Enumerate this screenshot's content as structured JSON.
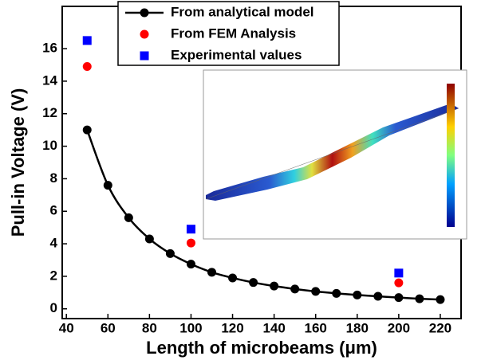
{
  "chart_data": {
    "type": "line",
    "xlabel": "Length of microbeams (μm)",
    "ylabel": "Pull-in Voltage (V)",
    "xlim": [
      38,
      230
    ],
    "ylim": [
      -0.6,
      18.6
    ],
    "xticks": [
      40,
      60,
      80,
      100,
      120,
      140,
      160,
      180,
      200,
      220
    ],
    "yticks": [
      0,
      2,
      4,
      6,
      8,
      10,
      12,
      14,
      16
    ],
    "series": [
      {
        "name": "From analytical model",
        "color": "#000000",
        "marker": "circle",
        "line": true,
        "x": [
          50,
          60,
          70,
          80,
          90,
          100,
          110,
          120,
          130,
          140,
          150,
          160,
          170,
          180,
          190,
          200,
          210,
          220
        ],
        "values": [
          11.0,
          7.6,
          5.6,
          4.3,
          3.4,
          2.75,
          2.25,
          1.9,
          1.62,
          1.4,
          1.22,
          1.07,
          0.95,
          0.85,
          0.77,
          0.69,
          0.62,
          0.57
        ]
      },
      {
        "name": "From FEM Analysis",
        "color": "#ff0000",
        "marker": "circle",
        "line": false,
        "x": [
          50,
          100,
          200
        ],
        "values": [
          14.9,
          4.05,
          1.6
        ]
      },
      {
        "name": "Experimental values",
        "color": "#0000ff",
        "marker": "square",
        "line": false,
        "x": [
          50,
          100,
          200
        ],
        "values": [
          16.5,
          4.9,
          2.2
        ]
      }
    ]
  }
}
